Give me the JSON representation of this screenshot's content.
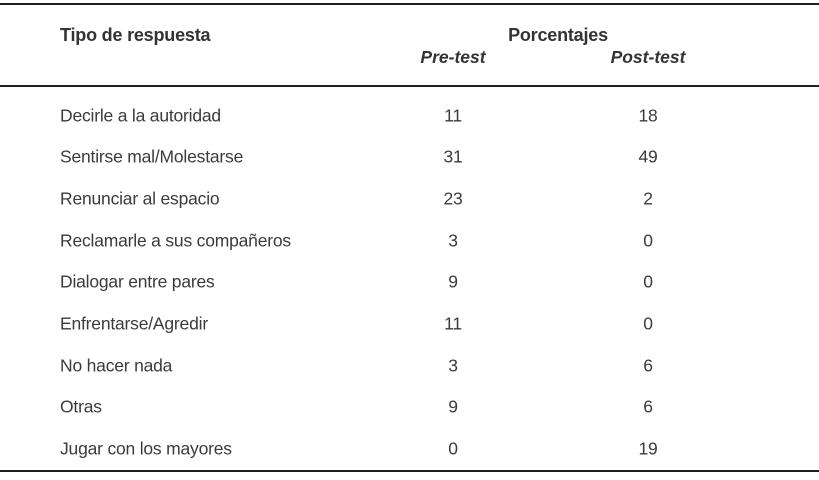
{
  "table": {
    "header": {
      "col_tipo": "Tipo de respuesta",
      "col_group": "Porcentajes",
      "col_pre": "Pre-test",
      "col_post": "Post-test"
    },
    "rows": [
      {
        "tipo": "Decirle a la autoridad",
        "pre": "11",
        "post": "18"
      },
      {
        "tipo": "Sentirse mal/Molestarse",
        "pre": "31",
        "post": "49"
      },
      {
        "tipo": "Renunciar al espacio",
        "pre": "23",
        "post": "2"
      },
      {
        "tipo": "Reclamarle a sus compañeros",
        "pre": "3",
        "post": "0"
      },
      {
        "tipo": "Dialogar entre pares",
        "pre": "9",
        "post": "0"
      },
      {
        "tipo": "Enfrentarse/Agredir",
        "pre": "11",
        "post": "0"
      },
      {
        "tipo": "No hacer nada",
        "pre": "3",
        "post": "6"
      },
      {
        "tipo": "Otras",
        "pre": "9",
        "post": "6"
      },
      {
        "tipo": "Jugar con los mayores",
        "pre": "0",
        "post": "19"
      }
    ]
  },
  "colors": {
    "background": "#ffffff",
    "text": "#3b3b3b",
    "rule": "#1f1f1f"
  }
}
